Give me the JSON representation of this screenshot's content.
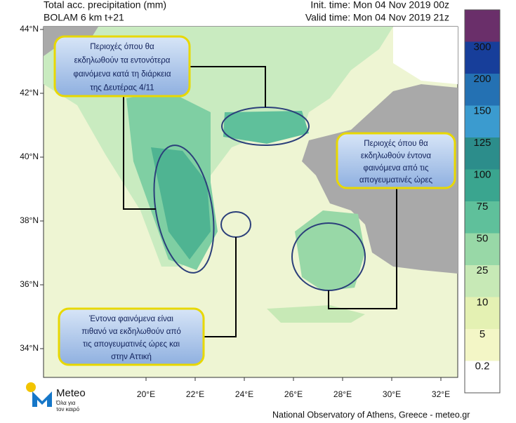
{
  "header": {
    "title": "Total acc. precipitation (mm)",
    "model": "BOLAM 6 km t+21",
    "init_time": "Init. time: Mon 04 Nov 2019 00z",
    "valid_time": "Valid time: Mon 04 Nov 2019 21z"
  },
  "map": {
    "lat_labels": [
      "44°N",
      "42°N",
      "40°N",
      "38°N",
      "36°N",
      "34°N"
    ],
    "lon_labels": [
      "20°E",
      "22°E",
      "24°E",
      "26°E",
      "28°E",
      "30°E",
      "32°E"
    ]
  },
  "colorbar": {
    "levels": [
      0.2,
      5,
      10,
      25,
      50,
      75,
      100,
      125,
      150,
      200,
      300
    ],
    "colors": [
      "#ffffff",
      "#f3f6c6",
      "#e4f1b3",
      "#c7e9b6",
      "#98d8a7",
      "#5fc09b",
      "#3aa58f",
      "#2c8d8b",
      "#3b9bcf",
      "#2471b3",
      "#173e9a",
      "#6a2f6a"
    ]
  },
  "callouts": [
    {
      "lines": [
        "Περιοχές όπου θα",
        "εκδηλωθούν τα εντονότερα",
        "φαινόμενα κατά τη διάρκεια",
        "της Δευτέρας 4/11"
      ]
    },
    {
      "lines": [
        "Περιοχές όπου θα",
        "εκδηλωθούν έντονα",
        "φαινόμενα από τις",
        "απογευματινές ώρες"
      ]
    },
    {
      "lines": [
        "Έντονα φαινόμενα είναι",
        "πιθανό να εκδηλωθούν από",
        "τις απογευματινές ώρες και",
        "στην Αττική"
      ]
    }
  ],
  "logo": {
    "name": "Meteo",
    "tagline": [
      "Όλα για",
      "τον καιρό"
    ]
  },
  "footer": "National Observatory of Athens, Greece - meteo.gr"
}
